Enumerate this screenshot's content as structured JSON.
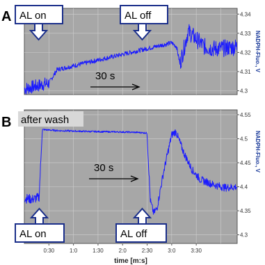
{
  "chart_data": [
    {
      "panel": "A",
      "type": "line",
      "ylabel": "NADPH-Fluo., V",
      "yticks": [
        "4.34",
        "4.33",
        "4.32",
        "4.31",
        "4.3"
      ],
      "ylim": [
        4.298,
        4.343
      ],
      "xlim": [
        0,
        260
      ],
      "grid": true,
      "series": [
        {
          "x": [
            0,
            20,
            30,
            40,
            60,
            80,
            100,
            120,
            140,
            160,
            180,
            186,
            190,
            195,
            200,
            210,
            220,
            230,
            240,
            260
          ],
          "values": [
            4.301,
            4.303,
            4.304,
            4.311,
            4.313,
            4.315,
            4.317,
            4.319,
            4.321,
            4.323,
            4.325,
            4.323,
            4.314,
            4.322,
            4.331,
            4.327,
            4.323,
            4.322,
            4.322,
            4.323
          ]
        }
      ],
      "annotations": {
        "al_on": "AL on",
        "al_off": "AL off",
        "scale": "30 s"
      }
    },
    {
      "panel": "B",
      "type": "line",
      "ylabel": "NADPH-Fluo., V",
      "yticks": [
        "4.55",
        "4.5",
        "4.45",
        "4.4",
        "4.35",
        "4.3"
      ],
      "ylim": [
        4.282,
        4.56
      ],
      "xlim": [
        0,
        260
      ],
      "grid": true,
      "series": [
        {
          "x": [
            0,
            10,
            18,
            20,
            22,
            40,
            80,
            120,
            140,
            150,
            151,
            154,
            158,
            162,
            170,
            180,
            185,
            195,
            205,
            215,
            230,
            245,
            260
          ],
          "values": [
            4.376,
            4.374,
            4.378,
            4.45,
            4.519,
            4.517,
            4.515,
            4.514,
            4.513,
            4.512,
            4.47,
            4.37,
            4.345,
            4.355,
            4.43,
            4.508,
            4.515,
            4.47,
            4.435,
            4.415,
            4.405,
            4.398,
            4.4
          ]
        }
      ],
      "xticks": [
        "0:30",
        "1:0",
        "1:30",
        "2:0",
        "2:30",
        "3:0",
        "3:30"
      ],
      "xlabel": "time [m:s]",
      "annotations": {
        "wash": "after wash",
        "al_on": "AL on",
        "al_off": "AL off",
        "scale": "30 s"
      }
    }
  ],
  "colors": {
    "trace": "#1a1aff",
    "plot_background": "#a7a7a7",
    "callout_border": "#1a2e8a"
  },
  "icons": {
    "callout_arrow": "down-arrow-icon",
    "callout_arrow_up": "up-arrow-icon",
    "scale_arrow": "right-arrow-icon"
  }
}
